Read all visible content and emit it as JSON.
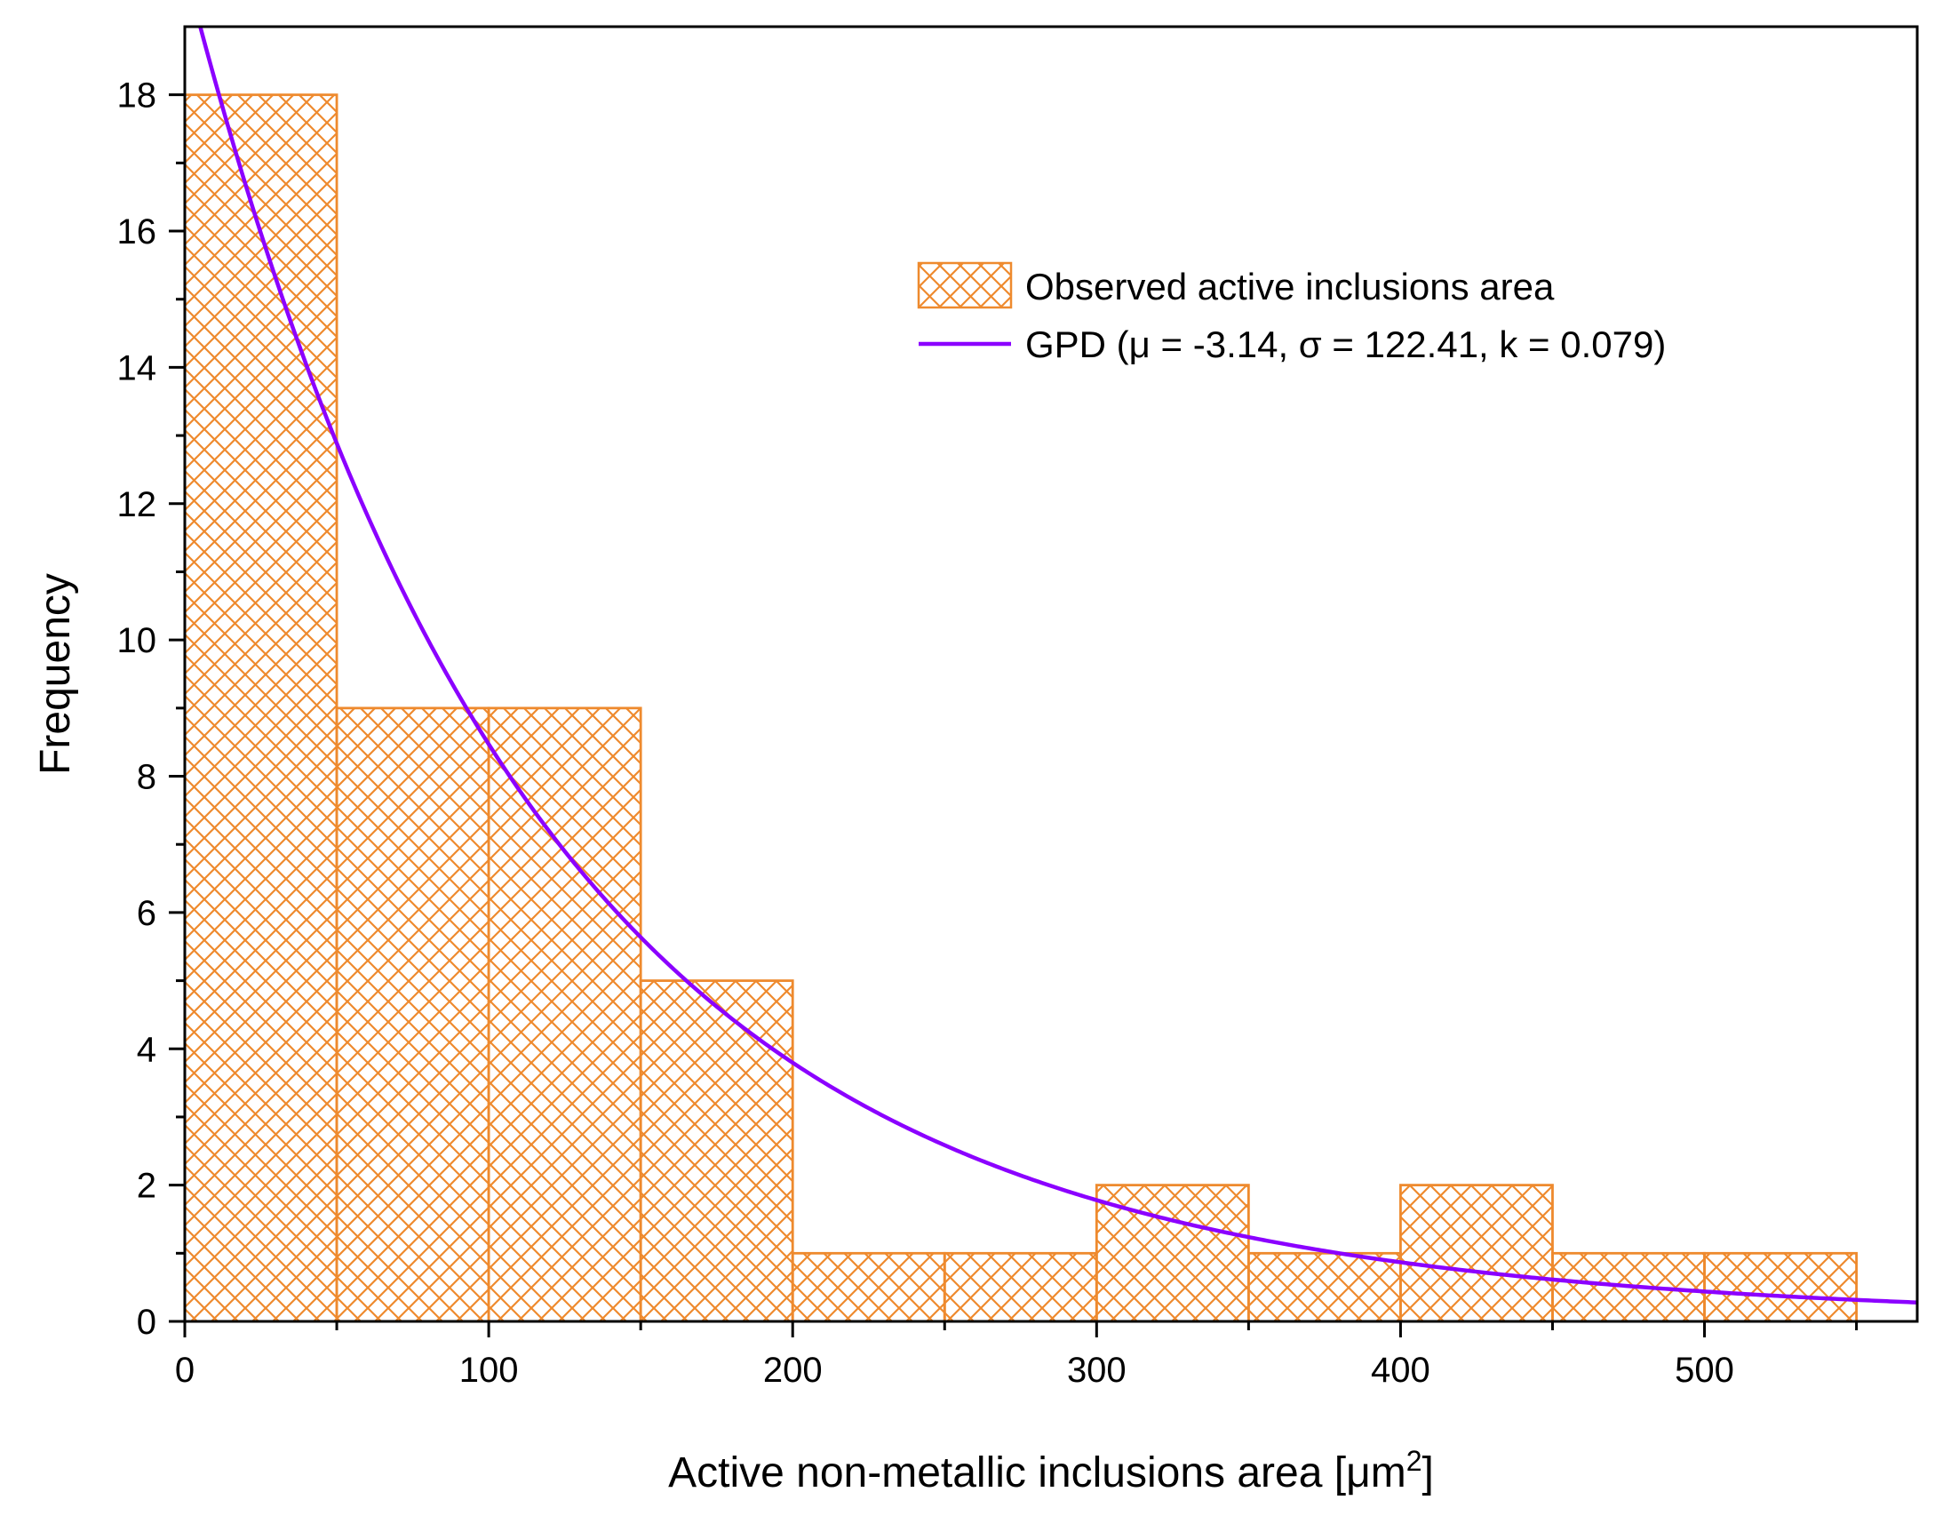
{
  "chart_data": {
    "type": "bar",
    "subtype": "histogram",
    "xlabel": "Active non-metallic inclusions area [μm",
    "xlabel_sup": "2",
    "xlabel_close": "]",
    "ylabel": "Frequency",
    "xlim": [
      0,
      570
    ],
    "ylim": [
      0,
      19
    ],
    "xticks": [
      0,
      100,
      200,
      300,
      400,
      500
    ],
    "yticks": [
      0,
      2,
      4,
      6,
      8,
      10,
      12,
      14,
      16,
      18
    ],
    "bins": [
      {
        "start": 0,
        "end": 50,
        "count": 18
      },
      {
        "start": 50,
        "end": 100,
        "count": 9
      },
      {
        "start": 100,
        "end": 150,
        "count": 9
      },
      {
        "start": 150,
        "end": 200,
        "count": 5
      },
      {
        "start": 200,
        "end": 250,
        "count": 1
      },
      {
        "start": 250,
        "end": 300,
        "count": 1
      },
      {
        "start": 300,
        "end": 350,
        "count": 2
      },
      {
        "start": 350,
        "end": 400,
        "count": 1
      },
      {
        "start": 400,
        "end": 450,
        "count": 2
      },
      {
        "start": 450,
        "end": 500,
        "count": 1
      },
      {
        "start": 500,
        "end": 550,
        "count": 1
      }
    ],
    "fit": {
      "name": "GPD",
      "mu": -3.14,
      "sigma": 122.41,
      "k": 0.079,
      "scale_total": 50,
      "bin_width": 50
    },
    "legend": {
      "position": "top-right",
      "bars_label": "Observed active inclusions area",
      "fit_label": "GPD (μ = -3.14, σ = 122.41, k = 0.079)"
    },
    "colors": {
      "bar": "#ee8a2e",
      "fit_line": "#8b00ff",
      "axis": "#000000"
    }
  }
}
